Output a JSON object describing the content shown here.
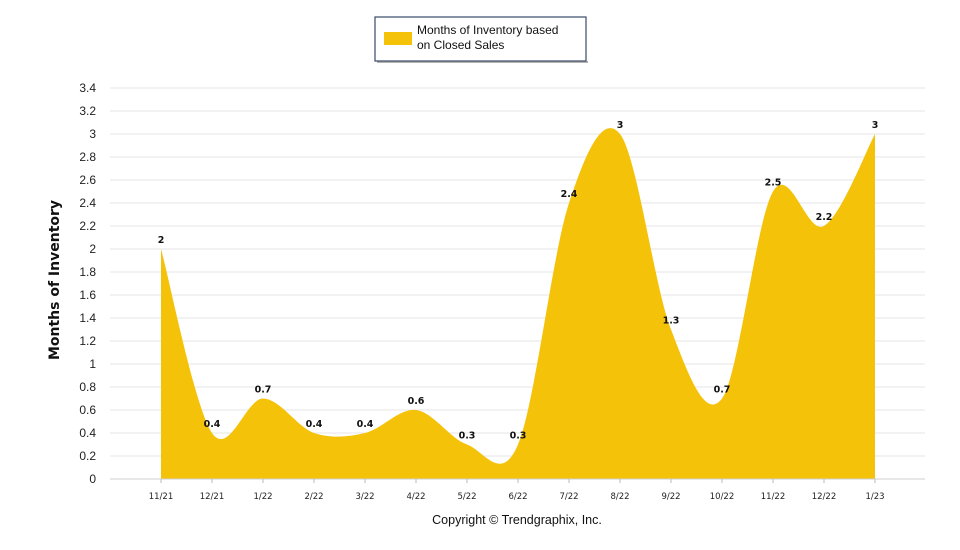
{
  "chart_data": {
    "type": "area",
    "ylabel": "Months of Inventory",
    "xlabel": "",
    "ylim": [
      0,
      3.4
    ],
    "yticks": [
      "0",
      "0.2",
      "0.4",
      "0.6",
      "0.8",
      "1",
      "1.2",
      "1.4",
      "1.6",
      "1.8",
      "2",
      "2.2",
      "2.4",
      "2.6",
      "2.8",
      "3",
      "3.2",
      "3.4"
    ],
    "categories": [
      "11/21",
      "12/21",
      "1/22",
      "2/22",
      "3/22",
      "4/22",
      "5/22",
      "6/22",
      "7/22",
      "8/22",
      "9/22",
      "10/22",
      "11/22",
      "12/22",
      "1/23"
    ],
    "series": [
      {
        "name": "Months of Inventory based on Closed Sales",
        "color": "#F5C20A",
        "values": [
          2,
          0.4,
          0.7,
          0.4,
          0.4,
          0.6,
          0.3,
          0.3,
          2.4,
          3,
          1.3,
          0.7,
          2.5,
          2.2,
          3
        ],
        "labels": [
          "2",
          "0.4",
          "0.7",
          "0.4",
          "0.4",
          "0.6",
          "0.3",
          "0.3",
          "2.4",
          "3",
          "1.3",
          "0.7",
          "2.5",
          "2.2",
          "3"
        ]
      }
    ],
    "grid": true,
    "legend_position": "top-center",
    "legend_lines": [
      "Months of Inventory based",
      "on Closed Sales"
    ]
  },
  "footer": {
    "copyright": "Copyright © Trendgraphix, Inc."
  }
}
